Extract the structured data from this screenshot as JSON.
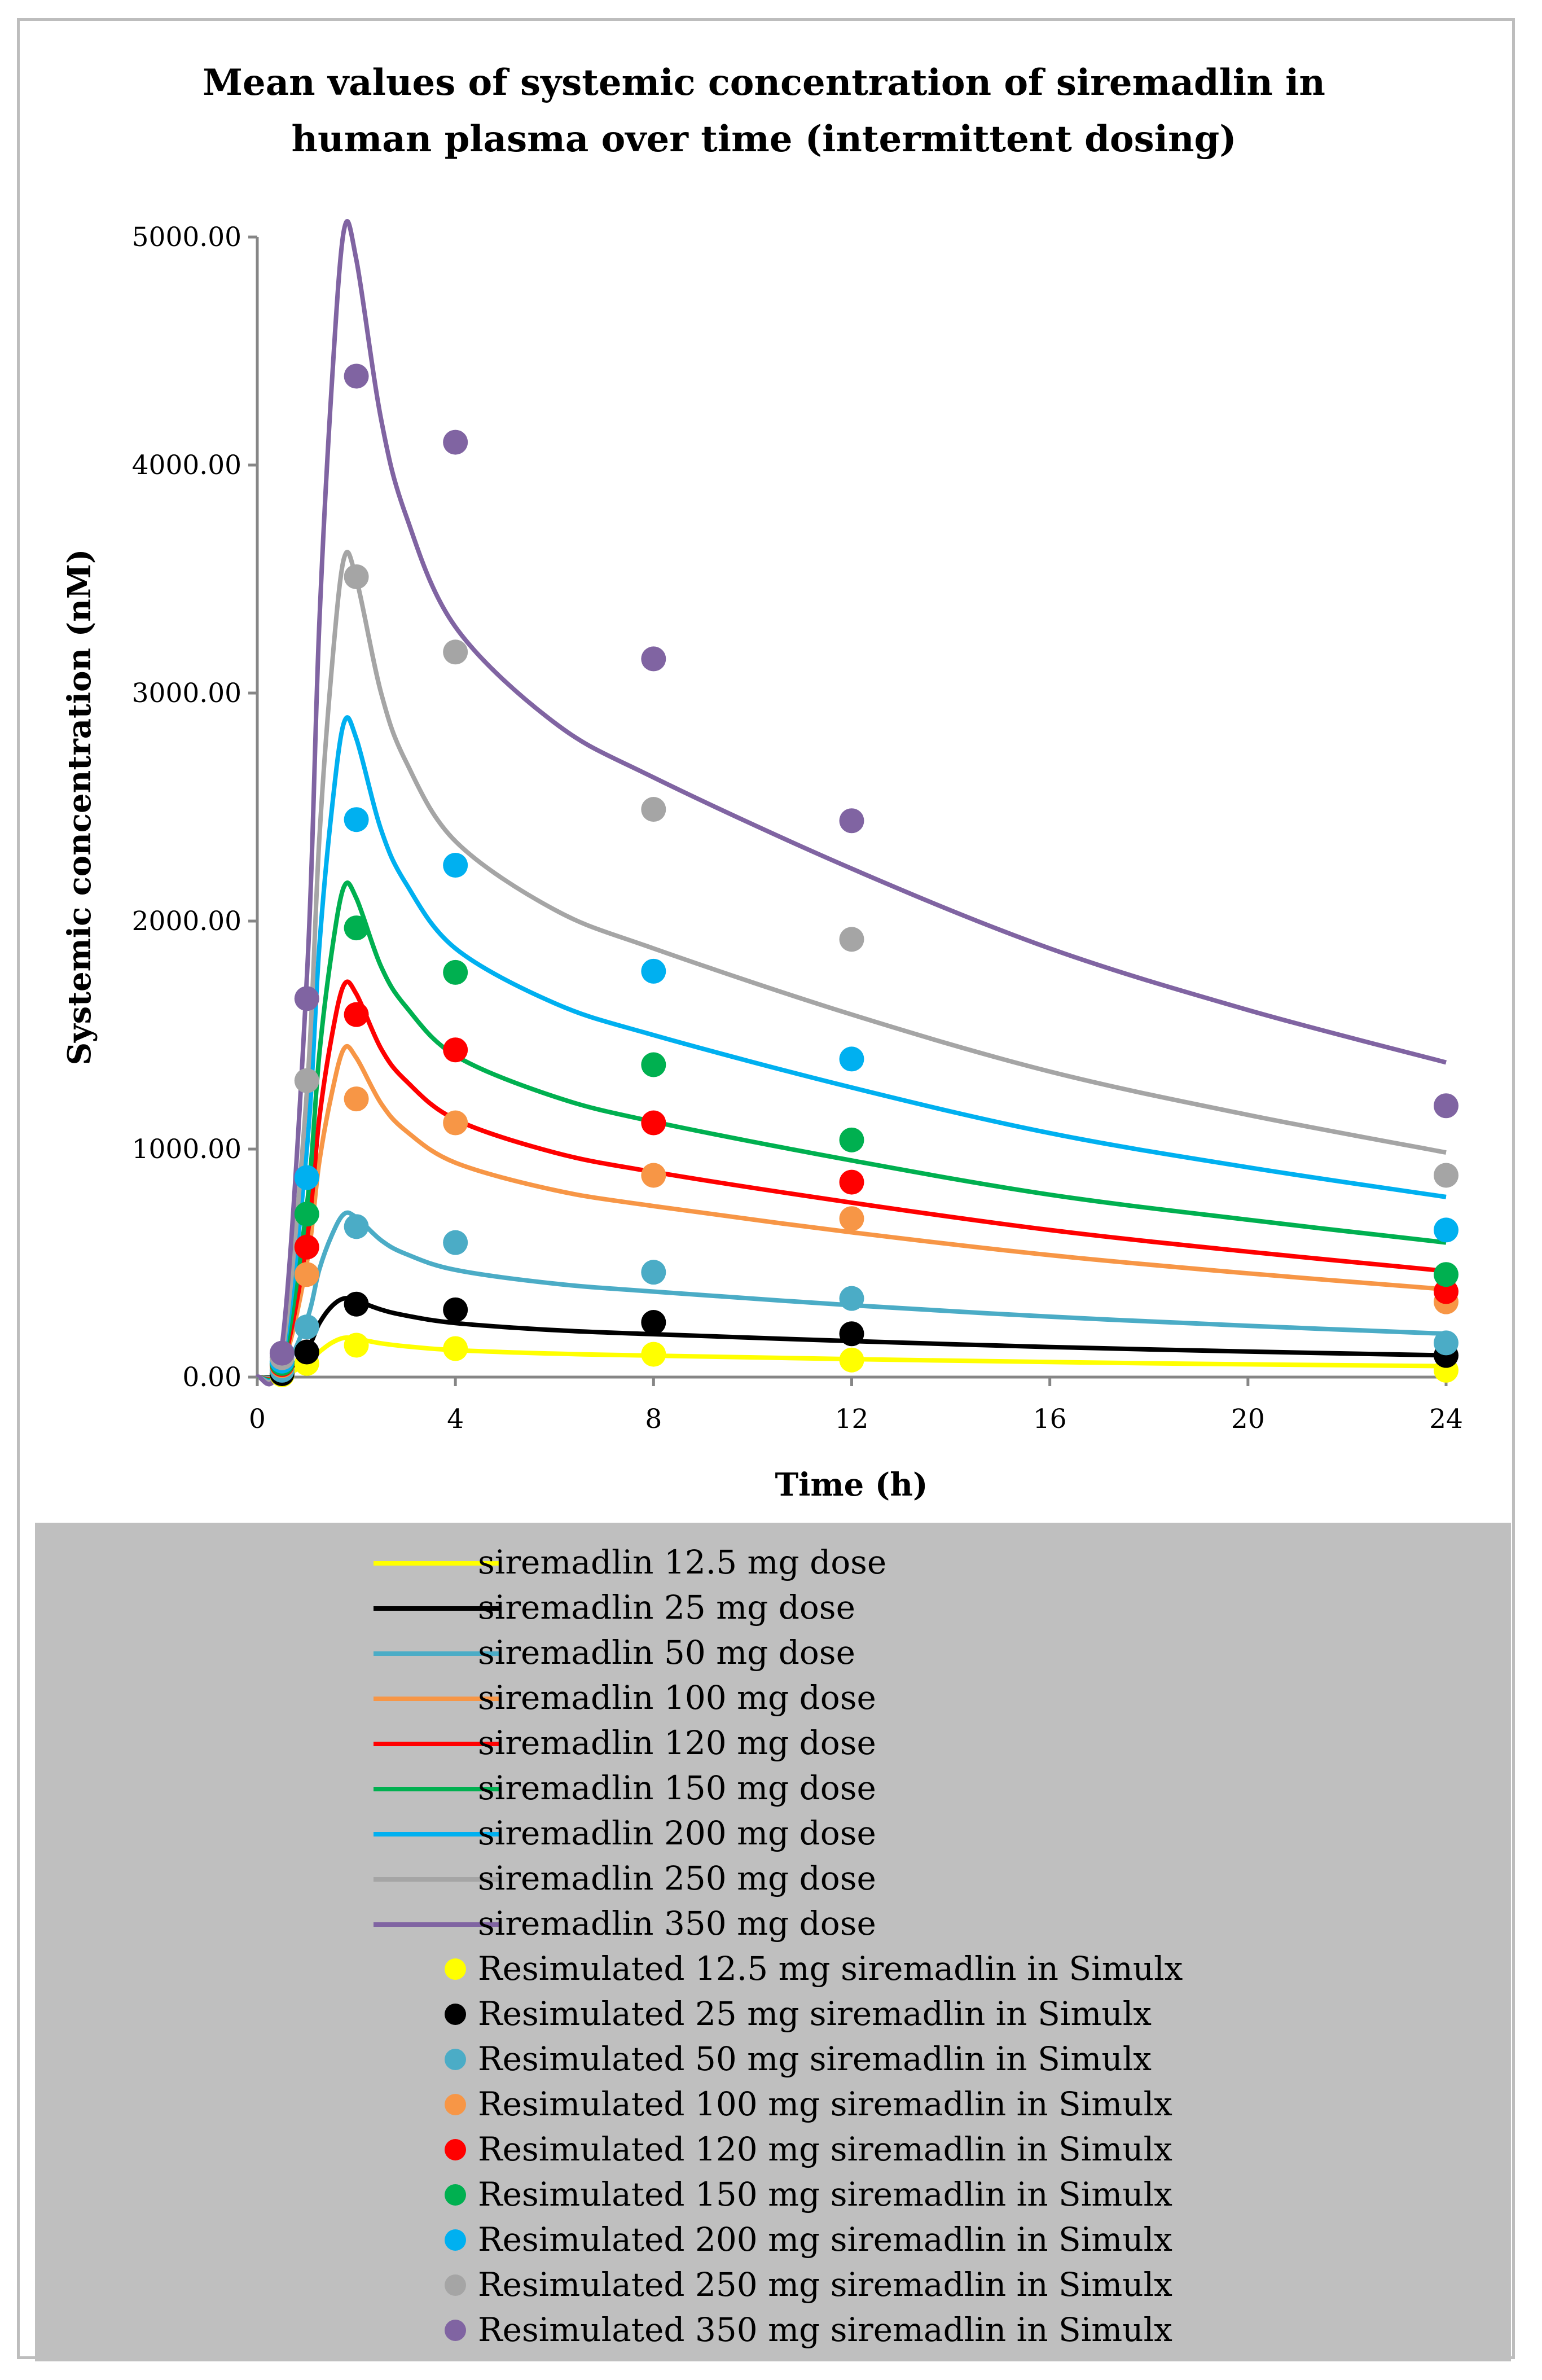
{
  "chart_data": {
    "type": "line",
    "title": [
      "Mean values of systemic concentration of siremadlin in",
      "human plasma over time (intermittent dosing)"
    ],
    "xlabel": "Time (h)",
    "ylabel": "Systemic concentration (nM)",
    "xlim": [
      0,
      24
    ],
    "ylim": [
      0,
      5000
    ],
    "xticks": [
      0,
      4,
      8,
      12,
      16,
      20,
      24
    ],
    "yticks": [
      0,
      1000,
      2000,
      3000,
      4000,
      5000
    ],
    "xtick_labels": [
      "0",
      "4",
      "8",
      "12",
      "16",
      "20",
      "24"
    ],
    "ytick_labels": [
      "0.00",
      "1000.00",
      "2000.00",
      "3000.00",
      "4000.00",
      "5000.00"
    ],
    "series": [
      {
        "name": "siremadlin 12.5 mg dose",
        "color": "#ffff00",
        "x": [
          0,
          0.5,
          1,
          1.25,
          1.5,
          1.75,
          2,
          2.5,
          3,
          4,
          6,
          8,
          12,
          16,
          20,
          24
        ],
        "values": [
          0,
          5,
          60,
          110,
          150,
          172,
          168,
          148,
          135,
          118,
          103,
          94,
          79,
          66,
          56,
          48
        ]
      },
      {
        "name": "siremadlin 25 mg dose",
        "color": "#000000",
        "x": [
          0,
          0.5,
          1,
          1.25,
          1.5,
          1.75,
          2,
          2.5,
          3,
          4,
          6,
          8,
          12,
          16,
          20,
          24
        ],
        "values": [
          0,
          10,
          120,
          235,
          310,
          345,
          335,
          296,
          270,
          237,
          206,
          188,
          158,
          132,
          112,
          95
        ]
      },
      {
        "name": "siremadlin 50 mg dose",
        "color": "#4bacc6",
        "x": [
          0,
          0.5,
          1,
          1.25,
          1.5,
          1.75,
          2,
          2.5,
          3,
          4,
          6,
          8,
          12,
          16,
          20,
          24
        ],
        "values": [
          0,
          20,
          250,
          470,
          620,
          715,
          700,
          600,
          540,
          470,
          410,
          375,
          315,
          265,
          225,
          190
        ]
      },
      {
        "name": "siremadlin 100 mg dose",
        "color": "#f79646",
        "x": [
          0,
          0.5,
          1,
          1.25,
          1.5,
          1.75,
          2,
          2.5,
          3,
          4,
          6,
          8,
          12,
          16,
          20,
          24
        ],
        "values": [
          0,
          40,
          500,
          940,
          1240,
          1440,
          1400,
          1200,
          1080,
          940,
          820,
          750,
          635,
          535,
          455,
          385
        ]
      },
      {
        "name": "siremadlin 120 mg dose",
        "color": "#ff0000",
        "x": [
          0,
          0.5,
          1,
          1.25,
          1.5,
          1.75,
          2,
          2.5,
          3,
          4,
          6,
          8,
          12,
          16,
          20,
          24
        ],
        "values": [
          0,
          48,
          600,
          1130,
          1490,
          1720,
          1680,
          1440,
          1300,
          1130,
          985,
          900,
          765,
          645,
          550,
          465
        ]
      },
      {
        "name": "siremadlin 150 mg dose",
        "color": "#00b050",
        "x": [
          0,
          0.5,
          1,
          1.25,
          1.5,
          1.75,
          2,
          2.5,
          3,
          4,
          6,
          8,
          12,
          16,
          20,
          24
        ],
        "values": [
          0,
          60,
          750,
          1410,
          1860,
          2150,
          2100,
          1800,
          1625,
          1410,
          1230,
          1120,
          950,
          800,
          690,
          590
        ]
      },
      {
        "name": "siremadlin 200 mg dose",
        "color": "#00b0f0",
        "x": [
          0,
          0.5,
          1,
          1.25,
          1.5,
          1.75,
          2,
          2.5,
          3,
          4,
          6,
          8,
          12,
          16,
          20,
          24
        ],
        "values": [
          0,
          80,
          1000,
          1880,
          2480,
          2870,
          2800,
          2400,
          2165,
          1880,
          1640,
          1500,
          1270,
          1070,
          920,
          790
        ]
      },
      {
        "name": "siremadlin 250 mg dose",
        "color": "#a5a5a5",
        "x": [
          0,
          0.5,
          1,
          1.25,
          1.5,
          1.75,
          2,
          2.5,
          3,
          4,
          6,
          8,
          12,
          16,
          20,
          24
        ],
        "values": [
          0,
          100,
          1250,
          2350,
          3100,
          3590,
          3500,
          3000,
          2700,
          2350,
          2050,
          1880,
          1590,
          1340,
          1150,
          985
        ]
      },
      {
        "name": "siremadlin 350 mg dose",
        "color": "#8064a2",
        "x": [
          0,
          0.5,
          1,
          1.25,
          1.5,
          1.75,
          2,
          2.5,
          3,
          4,
          6,
          8,
          12,
          16,
          20,
          24
        ],
        "values": [
          0,
          140,
          1750,
          3290,
          4340,
          5030,
          4900,
          4200,
          3780,
          3290,
          2870,
          2630,
          2230,
          1880,
          1610,
          1380
        ]
      }
    ],
    "scatter": [
      {
        "name": "Resimulated 12.5 mg siremadlin in Simulx",
        "color": "#ffff00",
        "x": [
          0.5,
          1,
          2,
          4,
          8,
          12,
          24
        ],
        "values": [
          10,
          60,
          140,
          125,
          100,
          75,
          30
        ]
      },
      {
        "name": "Resimulated 25 mg siremadlin in Simulx",
        "color": "#000000",
        "x": [
          0.5,
          1,
          2,
          4,
          8,
          12,
          24
        ],
        "values": [
          15,
          110,
          320,
          295,
          240,
          190,
          95
        ]
      },
      {
        "name": "Resimulated 50 mg siremadlin in Simulx",
        "color": "#4bacc6",
        "x": [
          0.5,
          1,
          2,
          4,
          8,
          12,
          24
        ],
        "values": [
          30,
          220,
          660,
          590,
          460,
          345,
          150
        ]
      },
      {
        "name": "Resimulated 100 mg siremadlin in Simulx",
        "color": "#f79646",
        "x": [
          0.5,
          1,
          2,
          4,
          8,
          12,
          24
        ],
        "values": [
          50,
          450,
          1220,
          1115,
          885,
          695,
          330
        ]
      },
      {
        "name": "Resimulated 120 mg siremadlin in Simulx",
        "color": "#ff0000",
        "x": [
          0.5,
          1,
          2,
          4,
          8,
          12,
          24
        ],
        "values": [
          55,
          570,
          1590,
          1435,
          1115,
          855,
          375
        ]
      },
      {
        "name": "Resimulated 150 mg siremadlin in Simulx",
        "color": "#00b050",
        "x": [
          0.5,
          1,
          2,
          4,
          8,
          12,
          24
        ],
        "values": [
          60,
          715,
          1970,
          1775,
          1370,
          1040,
          450
        ]
      },
      {
        "name": "Resimulated 200 mg siremadlin in Simulx",
        "color": "#00b0f0",
        "x": [
          0.5,
          1,
          2,
          4,
          8,
          12,
          24
        ],
        "values": [
          70,
          875,
          2445,
          2245,
          1780,
          1395,
          645
        ]
      },
      {
        "name": "Resimulated 250 mg siremadlin in Simulx",
        "color": "#a5a5a5",
        "x": [
          0.5,
          1,
          2,
          4,
          8,
          12,
          24
        ],
        "values": [
          85,
          1300,
          3510,
          3180,
          2490,
          1920,
          885
        ]
      },
      {
        "name": "Resimulated 350 mg siremadlin in Simulx",
        "color": "#8064a2",
        "x": [
          0.5,
          1,
          2,
          4,
          8,
          12,
          24
        ],
        "values": [
          105,
          1660,
          4390,
          4100,
          3150,
          2440,
          1190
        ]
      }
    ],
    "grid": false,
    "legend_position": "bottom"
  }
}
